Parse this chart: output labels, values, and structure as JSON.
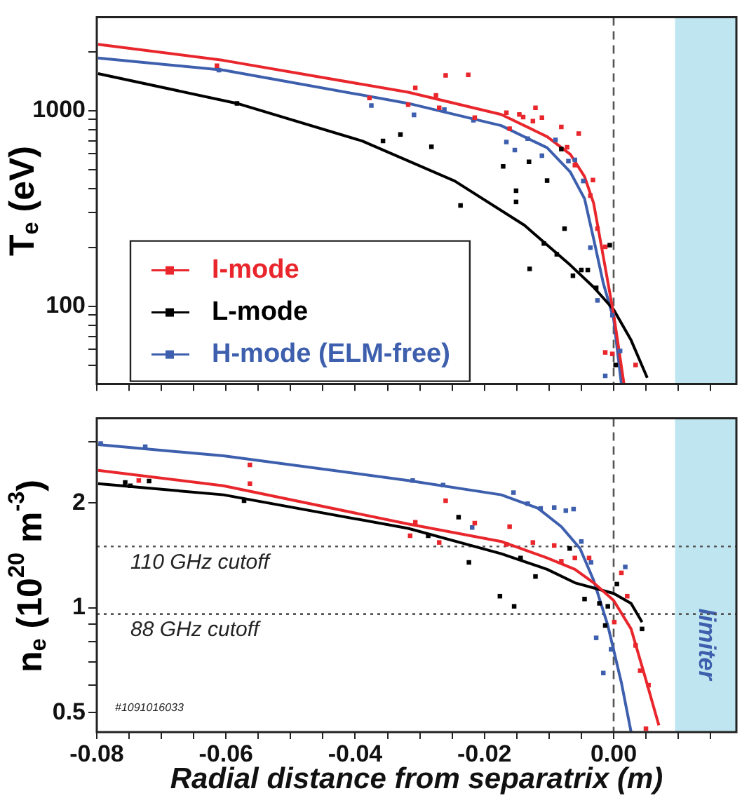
{
  "chart_data": [
    {
      "type": "line",
      "ylabel": "T$_{e}$ (eV)",
      "log": "y",
      "grid": false,
      "legend": "bottom left",
      "tick_labels": "y",
      "xlim": [
        -0.08,
        0.019
      ],
      "xticks": [
        {
          "value": -0.08,
          "label": null
        },
        {
          "value": -0.075,
          "label": null
        },
        {
          "value": -0.07,
          "label": null
        },
        {
          "value": -0.065,
          "label": null
        },
        {
          "value": -0.06,
          "label": null
        },
        {
          "value": -0.055,
          "label": null
        },
        {
          "value": -0.05,
          "label": null
        },
        {
          "value": -0.045,
          "label": null
        },
        {
          "value": -0.04,
          "label": null
        },
        {
          "value": -0.035,
          "label": null
        },
        {
          "value": -0.03,
          "label": null
        },
        {
          "value": -0.025,
          "label": null
        },
        {
          "value": -0.02,
          "label": null
        },
        {
          "value": -0.015,
          "label": null
        },
        {
          "value": -0.01,
          "label": null
        },
        {
          "value": -0.005,
          "label": null
        },
        {
          "value": 0,
          "label": null
        },
        {
          "value": 0.005,
          "label": null
        },
        {
          "value": 0.01,
          "label": null
        },
        {
          "value": 0.015,
          "label": null
        }
      ],
      "ylim": [
        40,
        3000
      ],
      "yticks": [
        {
          "value": 50,
          "label": null
        },
        {
          "value": 60,
          "label": null
        },
        {
          "value": 70,
          "label": null
        },
        {
          "value": 80,
          "label": null
        },
        {
          "value": 90,
          "label": null
        },
        100,
        {
          "value": 200,
          "label": null
        },
        {
          "value": 300,
          "label": null
        },
        {
          "value": 400,
          "label": null
        },
        {
          "value": 500,
          "label": null
        },
        {
          "value": 600,
          "label": null
        },
        {
          "value": 700,
          "label": null
        },
        {
          "value": 800,
          "label": null
        },
        {
          "value": 900,
          "label": null
        },
        1000,
        {
          "value": 2000,
          "label": null
        }
      ],
      "ref_lines": [
        {
          "axis": "x",
          "value": 0,
          "color": "#555555",
          "line_style": "dashed"
        }
      ],
      "bands": [
        {
          "axis": "x",
          "from": 0.0095,
          "to": 0.019,
          "color": "#bfe6f0"
        }
      ],
      "series": [
        {
          "type": "scatter",
          "marker": "square",
          "color": "#000000",
          "x": [
            -0.0583,
            -0.0357,
            -0.033,
            -0.0282,
            -0.0237,
            -0.0171,
            -0.0151,
            -0.0151,
            -0.013,
            -0.0131,
            -0.0108,
            -0.0088,
            -0.0076,
            -0.0063,
            -0.004,
            -0.0006,
            0.0003,
            -0.0027,
            -0.0103,
            -0.0081,
            -0.005
          ],
          "values": [
            1087,
            698,
            754,
            652,
            327,
            518,
            389,
            341,
            155,
            546,
            209,
            184,
            249,
            143,
            153,
            205,
            50,
            124,
            438,
            635,
            153
          ]
        },
        {
          "type": "scatter",
          "marker": "square",
          "color": "#e8262c",
          "x": [
            -0.0614,
            -0.0378,
            -0.0318,
            -0.0307,
            -0.0275,
            -0.027,
            -0.026,
            -0.0225,
            -0.0215,
            -0.0166,
            -0.0146,
            -0.014,
            -0.0121,
            -0.0111,
            -0.0161,
            -0.0125,
            -0.0081,
            -0.0054,
            -0.0072,
            -0.006,
            -0.0032,
            -0.0036,
            -0.0025,
            -0.0013,
            -0.0013,
            -0.0002,
            0.0034
          ],
          "values": [
            1694,
            1157,
            1070,
            1305,
            1194,
            1032,
            1510,
            1519,
            920,
            974,
            954,
            925,
            1032,
            920,
            807,
            882,
            824,
            762,
            648,
            526,
            441,
            367,
            249,
            201,
            58,
            57,
            50
          ]
        },
        {
          "type": "scatter",
          "marker": "square",
          "color": "#3d5fad",
          "x": [
            -0.0611,
            -0.0375,
            -0.0309,
            -0.0262,
            -0.0217,
            -0.0166,
            -0.0153,
            -0.0133,
            -0.0111,
            -0.009,
            -0.007,
            -0.006,
            -0.0047,
            -0.0036,
            -0.0025,
            -0.0002,
            -0.0013,
            0.001
          ],
          "values": [
            1608,
            1059,
            949,
            1010,
            892,
            690,
            628,
            718,
            587,
            707,
            551,
            559,
            436,
            199,
            107,
            90,
            44,
            59
          ]
        },
        {
          "type": "line",
          "marker": "none",
          "name": "I-mode",
          "color": "#e8262c",
          "x": [
            -0.0798,
            -0.0604,
            -0.0318,
            -0.0174,
            -0.0103,
            -0.0067,
            -0.0045,
            -0.0031,
            -0.0016,
            0,
            0.0016
          ],
          "values": [
            2177,
            1803,
            1239,
            954,
            735,
            597,
            459,
            336,
            179,
            91,
            40
          ]
        },
        {
          "type": "line",
          "marker": "none",
          "name": "L-mode",
          "color": "#000000",
          "x": [
            -0.0798,
            -0.0583,
            -0.0389,
            -0.0246,
            -0.0138,
            -0.0067,
            -0.0031,
            0,
            0.0027,
            0.0052
          ],
          "values": [
            1543,
            1087,
            698,
            436,
            259,
            162,
            125,
            96,
            67,
            43
          ]
        },
        {
          "type": "line",
          "marker": "none",
          "name": "H-mode (ELM-free)",
          "color": "#3d5fad",
          "x": [
            -0.0798,
            -0.0604,
            -0.0318,
            -0.0174,
            -0.0103,
            -0.0067,
            -0.0045,
            -0.0031,
            -0.0016,
            0,
            0.0012
          ],
          "values": [
            1853,
            1608,
            1087,
            837,
            645,
            484,
            354,
            221,
            131,
            86,
            40
          ]
        }
      ]
    },
    {
      "type": "line",
      "xlabel": "Radial distance from separatrix (m)",
      "ylabel": "n$_{e}$ (10$^{20}$ m$^{-3}$)",
      "log": "y",
      "grid": false,
      "xlim": [
        -0.08,
        0.019
      ],
      "xticks": [
        -0.08,
        {
          "value": -0.075,
          "label": null
        },
        {
          "value": -0.07,
          "label": null
        },
        {
          "value": -0.065,
          "label": null
        },
        -0.06,
        {
          "value": -0.055,
          "label": null
        },
        {
          "value": -0.05,
          "label": null
        },
        {
          "value": -0.045,
          "label": null
        },
        -0.04,
        {
          "value": -0.035,
          "label": null
        },
        {
          "value": -0.03,
          "label": null
        },
        {
          "value": -0.025,
          "label": null
        },
        -0.02,
        {
          "value": -0.015,
          "label": null
        },
        {
          "value": -0.01,
          "label": null
        },
        {
          "value": -0.005,
          "label": null
        },
        {
          "value": 0,
          "label": "0.00"
        },
        {
          "value": 0.005,
          "label": null
        },
        {
          "value": 0.01,
          "label": null
        },
        {
          "value": 0.015,
          "label": null
        }
      ],
      "ylim": [
        0.44,
        3.5
      ],
      "yticks": [
        0.5,
        {
          "value": 0.6,
          "label": null
        },
        {
          "value": 0.7,
          "label": null
        },
        {
          "value": 0.8,
          "label": null
        },
        {
          "value": 0.9,
          "label": null
        },
        1,
        2,
        {
          "value": 3,
          "label": null
        }
      ],
      "ref_lines": [
        {
          "axis": "x",
          "value": 0,
          "color": "#555555",
          "line_style": "dashed"
        },
        {
          "axis": "y",
          "value": 1.5,
          "label": "110 GHz cutoff",
          "color": "#555555",
          "line_style": "dotted"
        },
        {
          "axis": "y",
          "value": 0.96,
          "label": "88 GHz cutoff",
          "color": "#555555",
          "line_style": "dotted"
        }
      ],
      "bands": [
        {
          "axis": "x",
          "from": 0.0095,
          "to": 0.019,
          "color": "#bfe6f0",
          "label": "limiter"
        }
      ],
      "annotations": [
        "#1091016033"
      ],
      "series": [
        {
          "type": "scatter",
          "marker": "square",
          "color": "#000000",
          "x": [
            -0.0756,
            -0.0748,
            -0.0719,
            -0.0572,
            -0.0287,
            -0.024,
            -0.0224,
            -0.0176,
            -0.0154,
            -0.0144,
            -0.0121,
            -0.0068,
            -0.0045,
            -0.0022,
            -0.0013,
            -0.0009,
            0.0044,
            0.0005
          ],
          "values": [
            2.29,
            2.24,
            2.31,
            2.03,
            1.61,
            1.82,
            1.35,
            1.08,
            1.01,
            1.39,
            1.23,
            1.48,
            1.06,
            1.03,
            0.89,
            1.01,
            0.87,
            1.17
          ]
        },
        {
          "type": "scatter",
          "marker": "square",
          "color": "#e8262c",
          "x": [
            -0.0735,
            -0.0563,
            -0.0563,
            -0.0307,
            -0.0315,
            -0.026,
            -0.0215,
            -0.027,
            -0.0161,
            -0.0166,
            -0.0125,
            -0.0092,
            -0.0081,
            -0.006,
            -0.0038,
            0.0012,
            0.0001,
            0.0021,
            0.0034,
            0.0041,
            0.0054,
            0.005
          ],
          "values": [
            2.32,
            2.57,
            2.27,
            1.76,
            1.61,
            2.03,
            1.75,
            1.54,
            1.71,
            1.52,
            1.54,
            1.51,
            1.36,
            1.39,
            1.39,
            1.26,
            0.91,
            1.08,
            0.78,
            0.66,
            0.6,
            0.45
          ]
        },
        {
          "type": "scatter",
          "marker": "square",
          "color": "#3d5fad",
          "x": [
            -0.0794,
            -0.0725,
            -0.0311,
            -0.0264,
            -0.0155,
            -0.0133,
            -0.0113,
            -0.0092,
            -0.0074,
            -0.0062,
            -0.005,
            -0.0035,
            -0.0027,
            -0.0016,
            -0.0004,
            0.0018,
            -0.0219
          ],
          "values": [
            2.96,
            2.9,
            2.32,
            2.25,
            2.14,
            1.99,
            1.93,
            1.94,
            1.9,
            1.92,
            1.55,
            1.35,
            0.82,
            0.65,
            0.76,
            1.31,
            1.7
          ]
        },
        {
          "type": "line",
          "marker": "none",
          "color": "#e8262c",
          "x": [
            -0.0798,
            -0.0604,
            -0.0318,
            -0.0174,
            -0.0103,
            -0.006,
            -0.0031,
            0,
            0.0027,
            0.0048,
            0.007
          ],
          "values": [
            2.48,
            2.24,
            1.74,
            1.55,
            1.39,
            1.29,
            1.18,
            1.05,
            0.87,
            0.64,
            0.46
          ]
        },
        {
          "type": "line",
          "marker": "none",
          "color": "#000000",
          "x": [
            -0.0798,
            -0.0604,
            -0.0318,
            -0.0174,
            -0.0103,
            -0.006,
            0,
            0.0027,
            0.0044
          ],
          "values": [
            2.27,
            2.11,
            1.69,
            1.43,
            1.29,
            1.18,
            1.1,
            1.03,
            0.91
          ]
        },
        {
          "type": "line",
          "marker": "none",
          "color": "#3d5fad",
          "x": [
            -0.0798,
            -0.0604,
            -0.0318,
            -0.0174,
            -0.0117,
            -0.0081,
            -0.0052,
            -0.0031,
            -0.0009,
            0.0012,
            0.0027
          ],
          "values": [
            2.94,
            2.73,
            2.32,
            2.11,
            1.93,
            1.71,
            1.48,
            1.2,
            0.89,
            0.61,
            0.44
          ]
        }
      ]
    }
  ]
}
